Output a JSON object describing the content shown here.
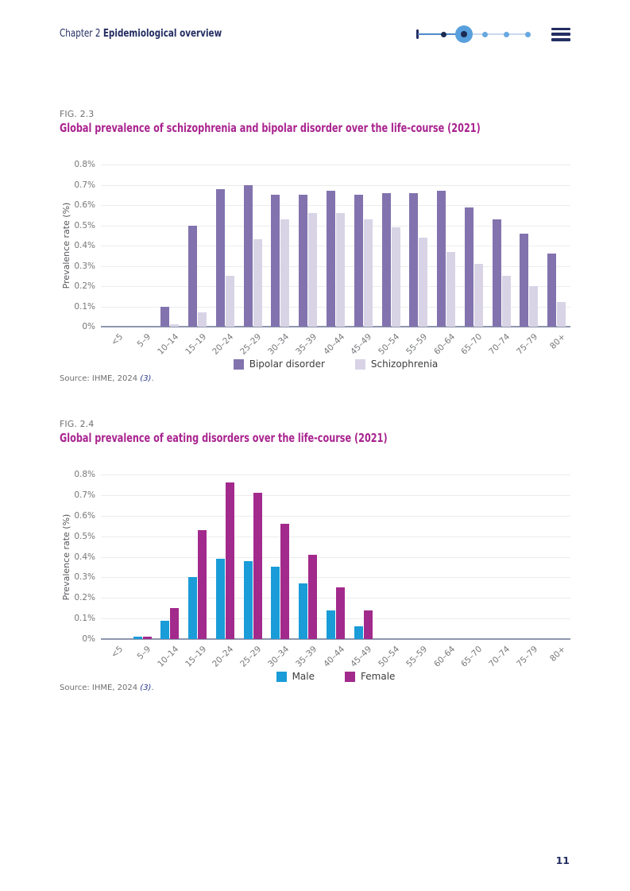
{
  "header": {
    "chapter_label": "Chapter 2",
    "chapter_title": "Epidemiological overview"
  },
  "nav": {
    "menu_icon": "hamburger-icon",
    "progress": {
      "total_dots": 5,
      "current_dot": 2,
      "has_start_tick": true
    }
  },
  "figures": [
    {
      "fig_label": "FIG. 2.3",
      "source_prefix": "Source: IHME, 2024 ",
      "source_ref": "(3)",
      "source_suffix": "."
    },
    {
      "fig_label": "FIG. 2.4",
      "source_prefix": "Source: IHME, 2024 ",
      "source_ref": "(3)",
      "source_suffix": "."
    }
  ],
  "chart_data": [
    {
      "type": "bar",
      "title": "Global prevalence of schizophrenia and bipolar disorder over the life-course (2021)",
      "categories": [
        "<5",
        "5–9",
        "10–14",
        "15–19",
        "20–24",
        "25–29",
        "30–34",
        "35–39",
        "40–44",
        "45–49",
        "50–54",
        "55–59",
        "60–64",
        "65–70",
        "70–74",
        "75–79",
        "80+"
      ],
      "series": [
        {
          "name": "Bipolar disorder",
          "color": "#8273ae",
          "values": [
            0,
            0,
            0.1,
            0.5,
            0.68,
            0.7,
            0.65,
            0.65,
            0.67,
            0.65,
            0.66,
            0.66,
            0.67,
            0.59,
            0.53,
            0.46,
            0.36
          ]
        },
        {
          "name": "Schizophrenia",
          "color": "#d8d4e6",
          "values": [
            0,
            0,
            0.01,
            0.07,
            0.25,
            0.43,
            0.53,
            0.56,
            0.56,
            0.53,
            0.49,
            0.44,
            0.37,
            0.31,
            0.25,
            0.2,
            0.12
          ]
        }
      ],
      "xlabel": "",
      "ylabel": "Prevalence rate (%)",
      "ylim": [
        0,
        0.8
      ],
      "ytick_step": 0.1,
      "ytick_labels": [
        "0%",
        "0.1%",
        "0.2%",
        "0.3%",
        "0.4%",
        "0.5%",
        "0.6%",
        "0.7%",
        "0.8%"
      ],
      "grid": true,
      "legend_position": "bottom"
    },
    {
      "type": "bar",
      "title": "Global prevalence of eating disorders over the life-course (2021)",
      "categories": [
        "<5",
        "5–9",
        "10–14",
        "15–19",
        "20–24",
        "25–29",
        "30–34",
        "35–39",
        "40–44",
        "45–49",
        "50–54",
        "55–59",
        "60–64",
        "65–70",
        "70–74",
        "75–79",
        "80+"
      ],
      "series": [
        {
          "name": "Male",
          "color": "#1a9cd8",
          "values": [
            0,
            0.01,
            0.09,
            0.3,
            0.39,
            0.38,
            0.35,
            0.27,
            0.14,
            0.06,
            0,
            0,
            0,
            0,
            0,
            0,
            0
          ]
        },
        {
          "name": "Female",
          "color": "#a22a8c",
          "values": [
            0,
            0.01,
            0.15,
            0.53,
            0.76,
            0.71,
            0.56,
            0.41,
            0.25,
            0.14,
            0,
            0,
            0,
            0,
            0,
            0,
            0
          ]
        }
      ],
      "xlabel": "",
      "ylabel": "Prevalence rate (%)",
      "ylim": [
        0,
        0.8
      ],
      "ytick_step": 0.1,
      "ytick_labels": [
        "0%",
        "0.1%",
        "0.2%",
        "0.3%",
        "0.4%",
        "0.5%",
        "0.6%",
        "0.7%",
        "0.8%"
      ],
      "grid": true,
      "legend_position": "bottom"
    }
  ],
  "page_number": "11",
  "colors": {
    "navy_text": "#242e62",
    "figure_title_magenta": "#a9238f",
    "bipolar_purple": "#8273ae",
    "schizophrenia_lilac": "#d8d4e6",
    "male_blue": "#1a9cd8",
    "female_magenta": "#a22a8c"
  }
}
